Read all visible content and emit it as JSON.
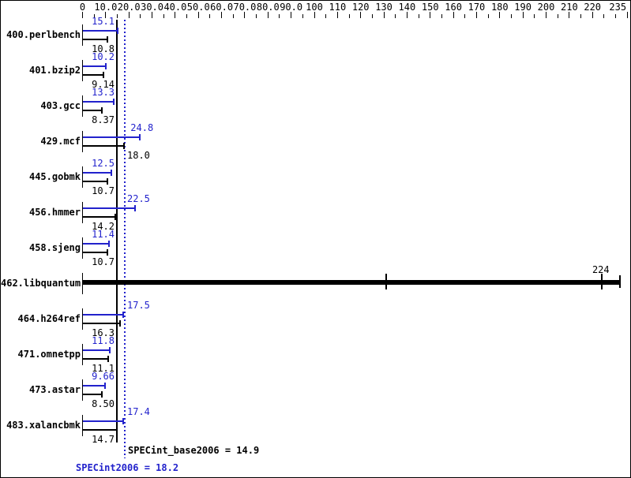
{
  "chart_data": {
    "type": "bar",
    "orientation": "horizontal",
    "title": "",
    "xlabel": "",
    "ylabel": "",
    "axis": {
      "min": 0,
      "max": 235,
      "minor_tick_step": 5,
      "major_labels": [
        {
          "v": 0,
          "t": "0"
        },
        {
          "v": 10,
          "t": "10.0"
        },
        {
          "v": 20,
          "t": "20.0"
        },
        {
          "v": 30,
          "t": "30.0"
        },
        {
          "v": 40,
          "t": "40.0"
        },
        {
          "v": 50,
          "t": "50.0"
        },
        {
          "v": 60,
          "t": "60.0"
        },
        {
          "v": 70,
          "t": "70.0"
        },
        {
          "v": 80,
          "t": "80.0"
        },
        {
          "v": 90,
          "t": "90.0"
        },
        {
          "v": 100,
          "t": "100"
        },
        {
          "v": 110,
          "t": "110"
        },
        {
          "v": 120,
          "t": "120"
        },
        {
          "v": 130,
          "t": "130"
        },
        {
          "v": 140,
          "t": "140"
        },
        {
          "v": 150,
          "t": "150"
        },
        {
          "v": 160,
          "t": "160"
        },
        {
          "v": 170,
          "t": "170"
        },
        {
          "v": 180,
          "t": "180"
        },
        {
          "v": 190,
          "t": "190"
        },
        {
          "v": 200,
          "t": "200"
        },
        {
          "v": 210,
          "t": "210"
        },
        {
          "v": 220,
          "t": "220"
        },
        {
          "v": 235,
          "t": "235",
          "align": "right"
        }
      ]
    },
    "series_legend": {
      "peak": "SPECint2006 (blue bars)",
      "base": "SPECint_base2006 (black bars)"
    },
    "benchmarks": [
      {
        "name": "400.perlbench",
        "peak": 15.1,
        "base": 10.8,
        "peak_label": "15.1",
        "base_label": "10.8"
      },
      {
        "name": "401.bzip2",
        "peak": 10.2,
        "base": 9.14,
        "peak_label": "10.2",
        "base_label": "9.14"
      },
      {
        "name": "403.gcc",
        "peak": 13.3,
        "base": 8.37,
        "peak_label": "13.3",
        "base_label": "8.37"
      },
      {
        "name": "429.mcf",
        "peak": 24.8,
        "base": 18.0,
        "peak_label": "24.8",
        "base_label": "18.0"
      },
      {
        "name": "445.gobmk",
        "peak": 12.5,
        "base": 10.7,
        "peak_label": "12.5",
        "base_label": "10.7"
      },
      {
        "name": "456.hmmer",
        "peak": 22.5,
        "base": 14.2,
        "peak_label": "22.5",
        "base_label": "14.2"
      },
      {
        "name": "458.sjeng",
        "peak": 11.4,
        "base": 10.7,
        "peak_label": "11.4",
        "base_label": "10.7"
      },
      {
        "name": "462.libquantum",
        "special": true,
        "base": 224,
        "base_label": "224",
        "run_ticks": [
          131,
          224
        ],
        "bar_end": 232
      },
      {
        "name": "464.h264ref",
        "peak": 17.5,
        "base": 16.3,
        "peak_label": "17.5",
        "base_label": "16.3"
      },
      {
        "name": "471.omnetpp",
        "peak": 11.8,
        "base": 11.1,
        "peak_label": "11.8",
        "base_label": "11.1"
      },
      {
        "name": "473.astar",
        "peak": 9.66,
        "base": 8.5,
        "peak_label": "9.66",
        "base_label": "8.50"
      },
      {
        "name": "483.xalancbmk",
        "peak": 17.4,
        "base": 14.7,
        "peak_label": "17.4",
        "base_label": "14.7"
      }
    ],
    "means": {
      "base_value": 14.9,
      "peak_value": 18.2,
      "base_text": "SPECint_base2006 = 14.9",
      "peak_text": "SPECint2006 = 18.2"
    }
  },
  "colors": {
    "peak_blue": "#2222cc",
    "bar_black": "#000000",
    "background": "#ffffff"
  }
}
